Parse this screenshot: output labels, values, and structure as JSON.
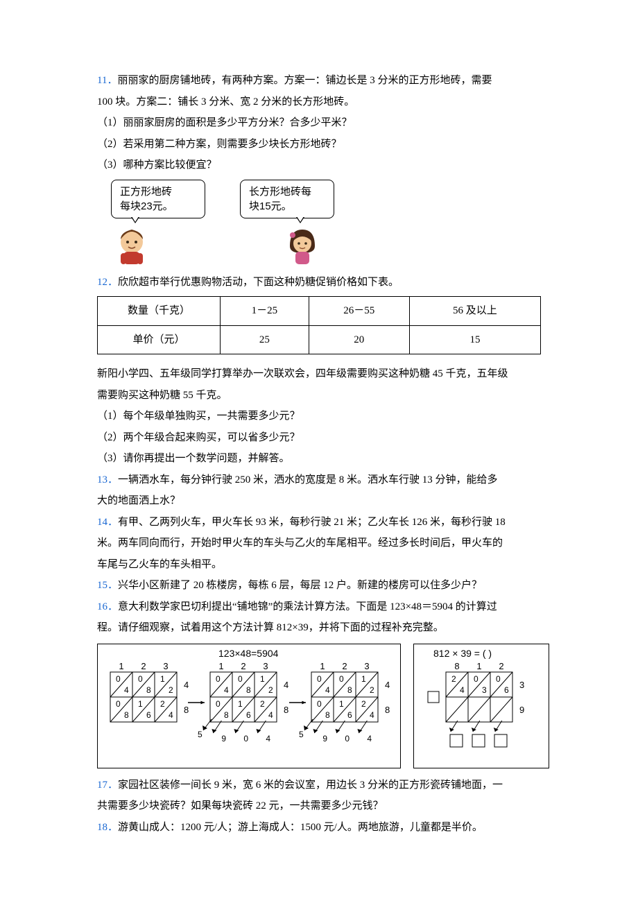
{
  "q11": {
    "num": "11．",
    "line1": "丽丽家的厨房铺地砖，有两种方案。方案一：铺边长是 3 分米的正方形地砖，需要",
    "line2": "100 块。方案二：铺长 3 分米、宽 2 分米的长方形地砖。",
    "part1": "（1）丽丽家厨房的面积是多少平方分米？合多少平米？",
    "part2": "（2）若采用第二种方案，则需要多少块长方形地砖？",
    "part3": "（3）哪种方案比较便宜？",
    "bubble_left_l1": "正方形地砖",
    "bubble_left_l2": "每块23元。",
    "bubble_right_l1": "长方形地砖每",
    "bubble_right_l2": "块15元。"
  },
  "q12": {
    "num": "12．",
    "line1": "欣欣超市举行优惠购物活动，下面这种奶糖促销价格如下表。",
    "table": {
      "r1c1": "数量（千克）",
      "r1c2": "1－25",
      "r1c3": "26－55",
      "r1c4": "56 及以上",
      "r2c1": "单价（元）",
      "r2c2": "25",
      "r2c3": "20",
      "r2c4": "15"
    },
    "line2a": "新阳小学四、五年级同学打算举办一次联欢会，四年级需要购买这种奶糖 45 千克，五年级",
    "line2b": "需要购买这种奶糖 55 千克。",
    "part1": "（1）每个年级单独购买，一共需要多少元？",
    "part2": "（2）两个年级合起来购买，可以省多少元？",
    "part3": "（3）请你再提出一个数学问题，并解答。"
  },
  "q13": {
    "num": "13．",
    "l1": "一辆洒水车，每分钟行驶 250 米，洒水的宽度是 8 米。洒水车行驶 13 分钟，能给多",
    "l2": "大的地面洒上水？"
  },
  "q14": {
    "num": "14．",
    "l1": "有甲、乙两列火车，甲火车长 93 米，每秒行驶 21 米；乙火车长 126 米，每秒行驶 18",
    "l2": "米。两车同向而行，开始时甲火车的车头与乙火的车尾相平。经过多长时间后，甲火车的",
    "l3": "车尾与乙火车的车头相平。"
  },
  "q15": {
    "num": "15．",
    "text": "兴华小区新建了 20 栋楼房，每栋 6 层，每层 12 户。新建的楼房可以住多少户？"
  },
  "q16": {
    "num": "16．",
    "l1": "意大利数学家巴切利提出“铺地锦”的乘法计算方法。下面是 123×48＝5904 的计算过",
    "l2": "程。请仔细观察，试着用这个方法计算 812×39，并将下面的过程补充完整。",
    "caption_left": "123×48=5904",
    "caption_right": "812 × 39 = (            )",
    "left": {
      "top": [
        "1",
        "2",
        "3"
      ],
      "right": [
        "4",
        "8"
      ],
      "cells": [
        [
          "0",
          "4",
          "0",
          "8",
          "1",
          "2"
        ],
        [
          "0",
          "8",
          "1",
          "6",
          "2",
          "4"
        ]
      ]
    },
    "right": {
      "top": [
        "8",
        "1",
        "2"
      ],
      "right": [
        "3",
        "9"
      ],
      "cells": [
        [
          "2",
          "4",
          "0",
          "3",
          "0",
          "6"
        ],
        [
          "",
          "",
          "",
          "",
          "",
          ""
        ]
      ]
    }
  },
  "q17": {
    "num": "17．",
    "l1": "家园社区装修一间长 9 米，宽 6 米的会议室，用边长 3 分米的正方形瓷砖铺地面，一",
    "l2": "共需要多少块瓷砖？如果每块瓷砖 22 元，一共需要多少元钱？"
  },
  "q18": {
    "num": "18．",
    "text": "游黄山成人：1200 元/人；游上海成人：1500 元/人。两地旅游，儿童都是半价。"
  }
}
